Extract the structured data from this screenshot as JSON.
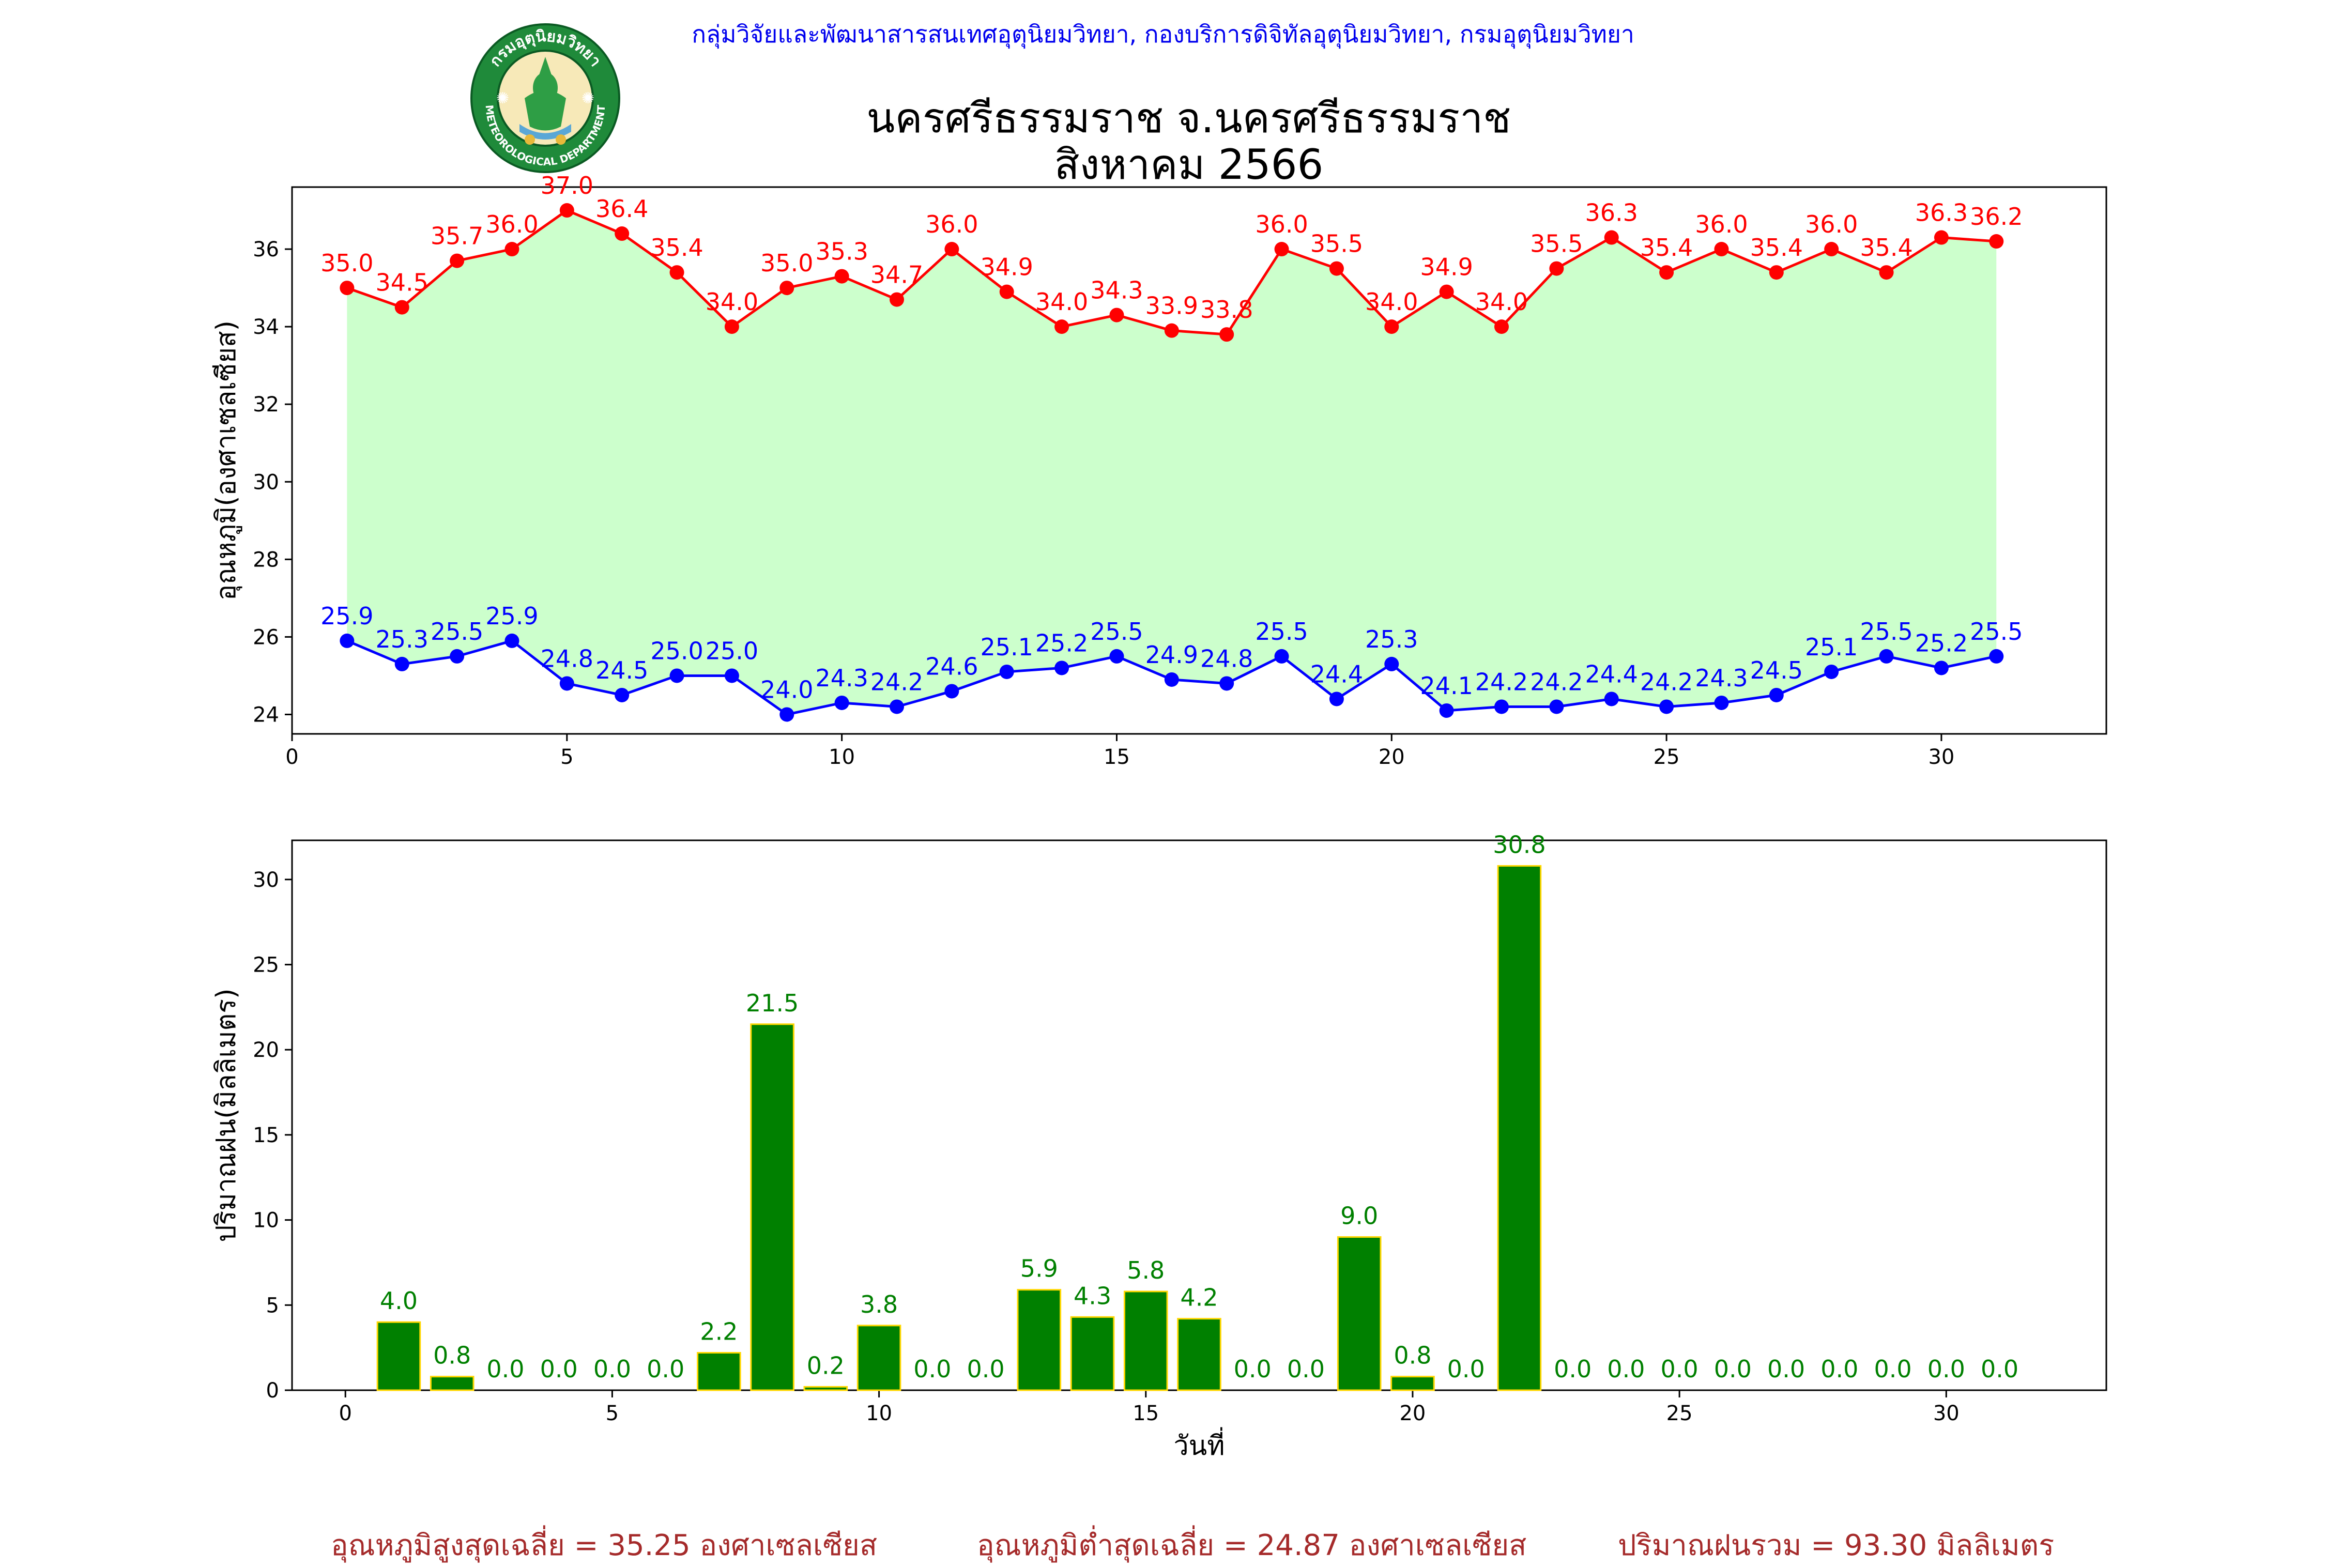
{
  "header": {
    "credit": "กลุ่มวิจัยและพัฒนาสารสนเทศอุตุนิยมวิทยา, กองบริการดิจิทัลอุตุนิยมวิทยา, กรมอุตุนิยมวิทยา",
    "logo_text_top": "กรมอุตุนิยมวิทยา",
    "logo_text_bottom": "METEOROLOGICAL DEPARTMENT"
  },
  "title": {
    "line1": "นครศรีธรรมราช จ.นครศรีธรรมราช",
    "line2": "สิงหาคม 2566"
  },
  "footer": {
    "avg_max": "อุณหภูมิสูงสุดเฉลี่ย = 35.25 องศาเซลเซียส",
    "avg_min": "อุณหภูมิต่ำสุดเฉลี่ย = 24.87 องศาเซลเซียส",
    "rain_total": "ปริมาณฝนรวม = 93.30 มิลลิเมตร"
  },
  "colors": {
    "max_line": "#ff0000",
    "min_line": "#0000ff",
    "fill_between": "#ccffcc",
    "bar_fill": "#008000",
    "bar_edge": "#ffd700",
    "bar_label": "#008000",
    "footer_text": "#a52a2a"
  },
  "chart_data": [
    {
      "type": "line",
      "ylabel": "อุณหภูมิ(องศาเซลเซียส)",
      "xlabel": "",
      "xlim": [
        0,
        33
      ],
      "ylim": [
        23.5,
        37.6
      ],
      "xticks": [
        "0",
        "5",
        "10",
        "15",
        "20",
        "25",
        "30"
      ],
      "yticks": [
        "24",
        "26",
        "28",
        "30",
        "32",
        "34",
        "36"
      ],
      "x": [
        1,
        2,
        3,
        4,
        5,
        6,
        7,
        8,
        9,
        10,
        11,
        12,
        13,
        14,
        15,
        16,
        17,
        18,
        19,
        20,
        21,
        22,
        23,
        24,
        25,
        26,
        27,
        28,
        29,
        30,
        31
      ],
      "fill_between": true,
      "series": [
        {
          "values": [
            35.0,
            34.5,
            35.7,
            36.0,
            37.0,
            36.4,
            35.4,
            34.0,
            35.0,
            35.3,
            34.7,
            36.0,
            34.9,
            34.0,
            34.3,
            33.9,
            33.8,
            36.0,
            35.5,
            34.0,
            34.9,
            34.0,
            35.5,
            36.3,
            35.4,
            36.0,
            35.4,
            36.0,
            35.4,
            36.3,
            36.2
          ],
          "labels": [
            "35.0",
            "34.5",
            "35.7",
            "36.0",
            "37.0",
            "36.4",
            "35.4",
            "34.0",
            "35.0",
            "35.3",
            "34.7",
            "36.0",
            "34.9",
            "34.0",
            "34.3",
            "33.9",
            "33.8",
            "36.0",
            "35.5",
            "34.0",
            "34.9",
            "34.0",
            "35.5",
            "36.3",
            "35.4",
            "36.0",
            "35.4",
            "36.0",
            "35.4",
            "36.3",
            "36.2"
          ]
        },
        {
          "values": [
            25.9,
            25.3,
            25.5,
            25.9,
            24.8,
            24.5,
            25.0,
            25.0,
            24.0,
            24.3,
            24.2,
            24.6,
            25.1,
            25.2,
            25.5,
            24.9,
            24.8,
            25.5,
            24.4,
            25.3,
            24.1,
            24.2,
            24.2,
            24.4,
            24.2,
            24.3,
            24.5,
            25.1,
            25.5,
            25.2,
            25.5
          ],
          "labels": [
            "25.9",
            "25.3",
            "25.5",
            "25.9",
            "24.8",
            "24.5",
            "25.0",
            "25.0",
            "24.0",
            "24.3",
            "24.2",
            "24.6",
            "25.1",
            "25.2",
            "25.5",
            "24.9",
            "24.8",
            "25.5",
            "24.4",
            "25.3",
            "24.1",
            "24.2",
            "24.2",
            "24.4",
            "24.2",
            "24.3",
            "24.5",
            "25.1",
            "25.5",
            "25.2",
            "25.5"
          ]
        }
      ]
    },
    {
      "type": "bar",
      "ylabel": "ปริมาณฝน(มิลลิเมตร)",
      "xlabel": "วันที่",
      "xlim": [
        -1,
        33
      ],
      "ylim": [
        0,
        32.3
      ],
      "xticks": [
        "0",
        "5",
        "10",
        "15",
        "20",
        "25",
        "30"
      ],
      "yticks": [
        "0",
        "5",
        "10",
        "15",
        "20",
        "25",
        "30"
      ],
      "x": [
        1,
        2,
        3,
        4,
        5,
        6,
        7,
        8,
        9,
        10,
        11,
        12,
        13,
        14,
        15,
        16,
        17,
        18,
        19,
        20,
        21,
        22,
        23,
        24,
        25,
        26,
        27,
        28,
        29,
        30,
        31
      ],
      "values": [
        4.0,
        0.8,
        0.0,
        0.0,
        0.0,
        0.0,
        2.2,
        21.5,
        0.2,
        3.8,
        0.0,
        0.0,
        5.9,
        4.3,
        5.8,
        4.2,
        0.0,
        0.0,
        9.0,
        0.8,
        0.0,
        30.8,
        0.0,
        0.0,
        0.0,
        0.0,
        0.0,
        0.0,
        0.0,
        0.0,
        0.0
      ],
      "labels": [
        "4.0",
        "0.8",
        "0.0",
        "0.0",
        "0.0",
        "0.0",
        "2.2",
        "21.5",
        "0.2",
        "3.8",
        "0.0",
        "0.0",
        "5.9",
        "4.3",
        "5.8",
        "4.2",
        "0.0",
        "0.0",
        "9.0",
        "0.8",
        "0.0",
        "30.8",
        "0.0",
        "0.0",
        "0.0",
        "0.0",
        "0.0",
        "0.0",
        "0.0",
        "0.0",
        "0.0"
      ]
    }
  ]
}
